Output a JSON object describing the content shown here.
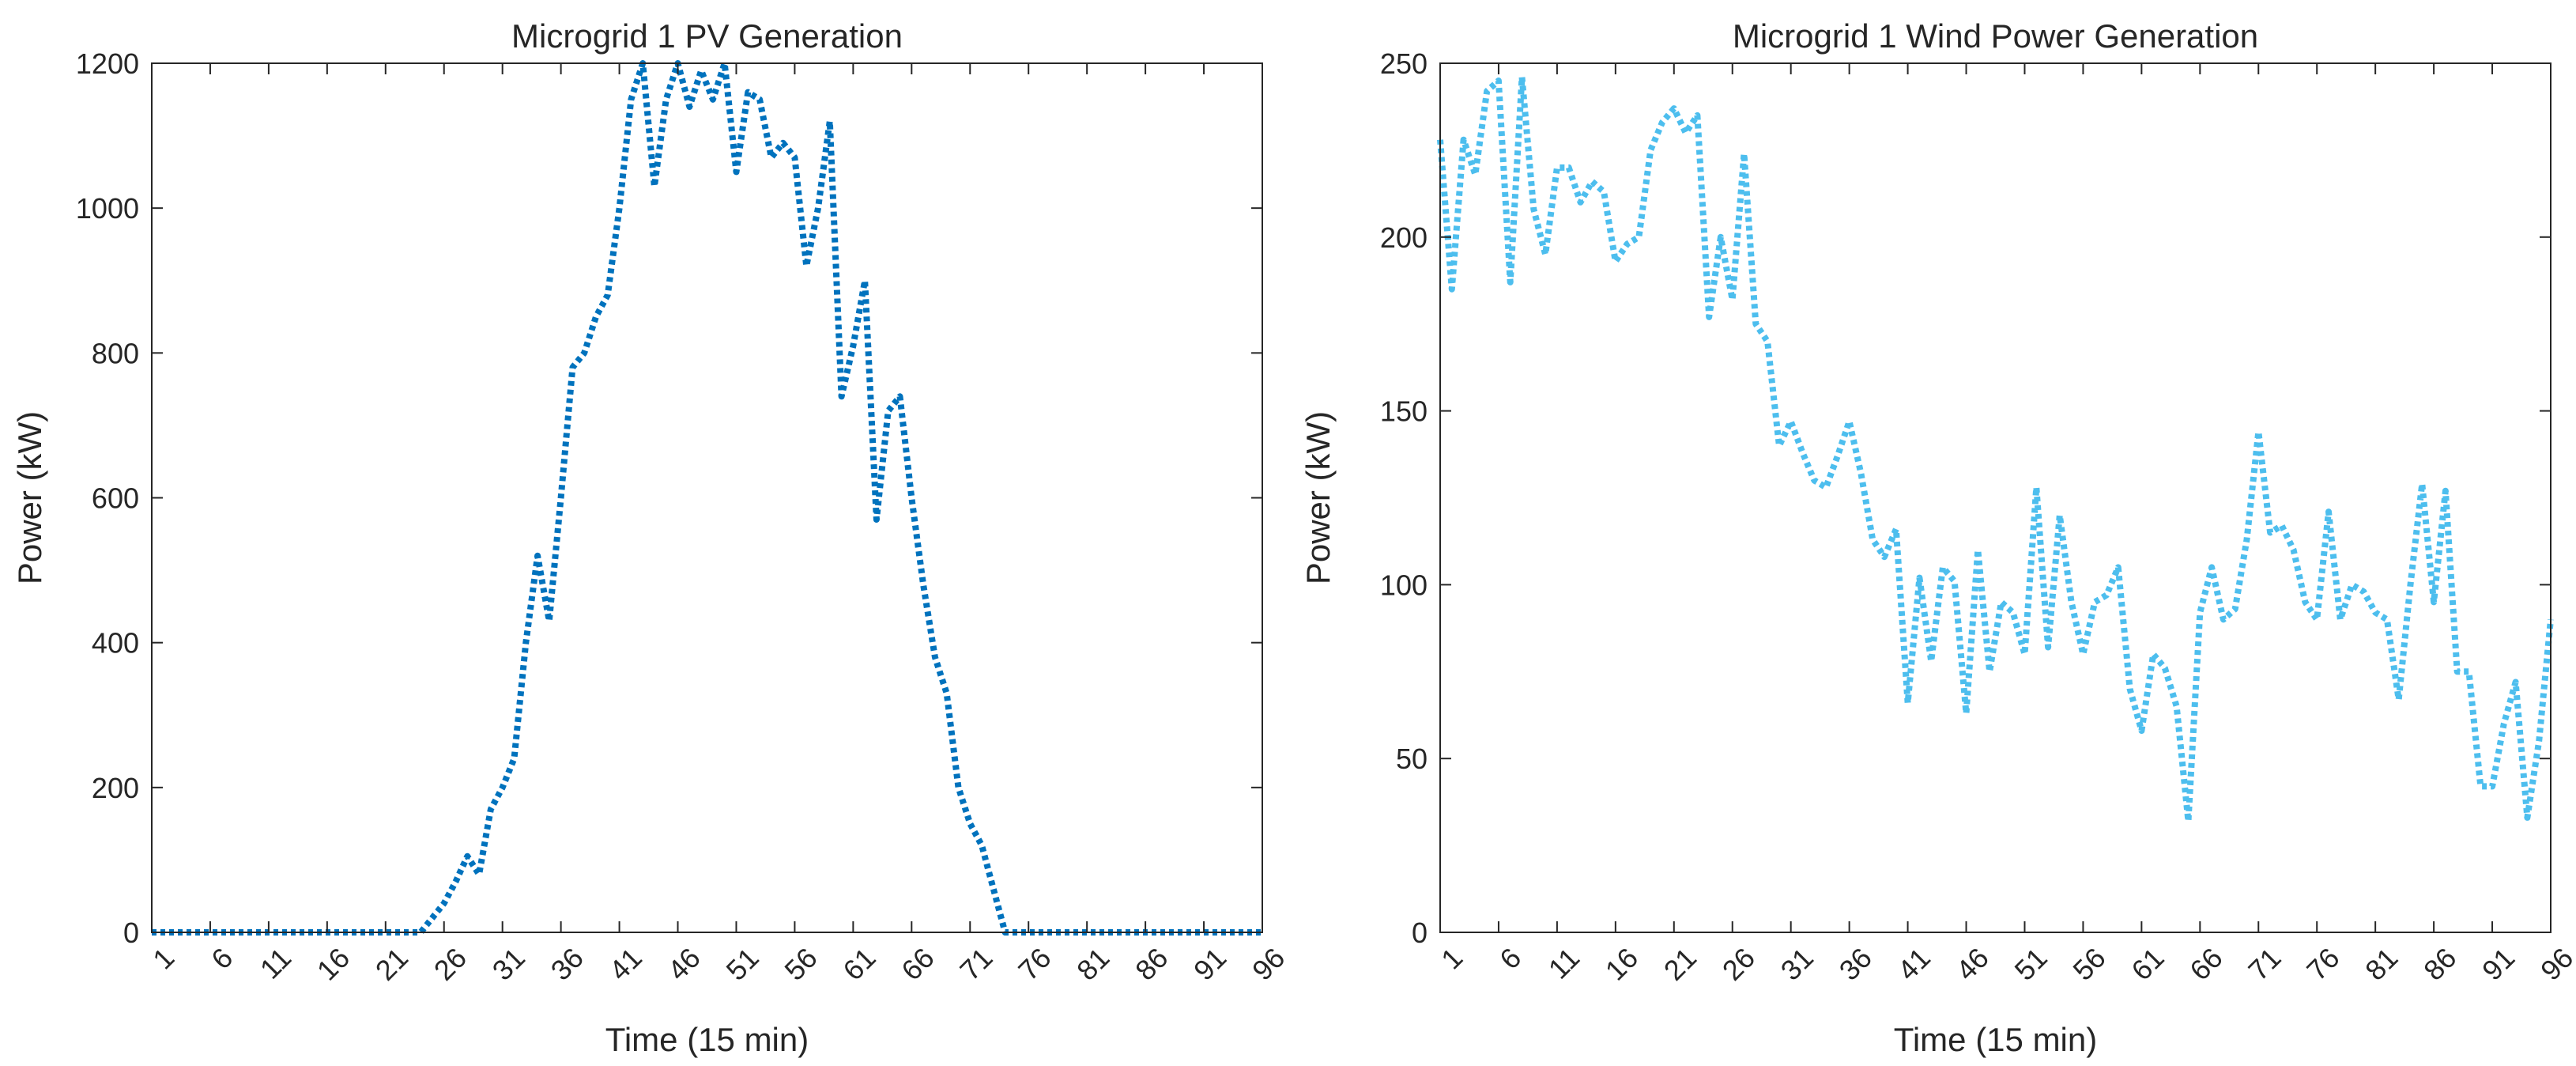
{
  "chart_data": [
    {
      "type": "line",
      "title": "Microgrid 1 PV Generation",
      "xlabel": "Time (15 min)",
      "ylabel": "Power (kW)",
      "xlim": [
        1,
        96
      ],
      "ylim": [
        0,
        1200
      ],
      "xticks": [
        1,
        6,
        11,
        16,
        21,
        26,
        31,
        36,
        41,
        46,
        51,
        56,
        61,
        66,
        71,
        76,
        81,
        86,
        91,
        96
      ],
      "yticks": [
        0,
        200,
        400,
        600,
        800,
        1000,
        1200
      ],
      "grid": false,
      "line_style": "dotted",
      "series": [
        {
          "name": "PV",
          "color": "#0072BD",
          "x": [
            1,
            2,
            3,
            4,
            5,
            6,
            7,
            8,
            9,
            10,
            11,
            12,
            13,
            14,
            15,
            16,
            17,
            18,
            19,
            20,
            21,
            22,
            23,
            24,
            25,
            26,
            27,
            28,
            29,
            30,
            31,
            32,
            33,
            34,
            35,
            36,
            37,
            38,
            39,
            40,
            41,
            42,
            43,
            44,
            45,
            46,
            47,
            48,
            49,
            50,
            51,
            52,
            53,
            54,
            55,
            56,
            57,
            58,
            59,
            60,
            61,
            62,
            63,
            64,
            65,
            66,
            67,
            68,
            69,
            70,
            71,
            72,
            73,
            74,
            75,
            76,
            77,
            78,
            79,
            80,
            81,
            82,
            83,
            84,
            85,
            86,
            87,
            88,
            89,
            90,
            91,
            92,
            93,
            94,
            95,
            96
          ],
          "values": [
            0,
            0,
            0,
            0,
            0,
            0,
            0,
            0,
            0,
            0,
            0,
            0,
            0,
            0,
            0,
            0,
            0,
            0,
            0,
            0,
            0,
            0,
            0,
            0,
            20,
            40,
            70,
            105,
            80,
            170,
            200,
            240,
            400,
            520,
            430,
            600,
            780,
            800,
            850,
            880,
            1000,
            1150,
            1200,
            1030,
            1150,
            1200,
            1140,
            1190,
            1150,
            1200,
            1050,
            1160,
            1150,
            1070,
            1090,
            1070,
            920,
            1000,
            1120,
            740,
            810,
            900,
            570,
            720,
            740,
            600,
            480,
            380,
            330,
            200,
            150,
            120,
            60,
            0,
            0,
            0,
            0,
            0,
            0,
            0,
            0,
            0,
            0,
            0,
            0,
            0,
            0,
            0,
            0,
            0,
            0,
            0,
            0,
            0,
            0,
            0
          ]
        }
      ]
    },
    {
      "type": "line",
      "title": "Microgrid 1 Wind Power Generation",
      "xlabel": "Time (15 min)",
      "ylabel": "Power (kW)",
      "xlim": [
        1,
        96
      ],
      "ylim": [
        0,
        250
      ],
      "xticks": [
        1,
        6,
        11,
        16,
        21,
        26,
        31,
        36,
        41,
        46,
        51,
        56,
        61,
        66,
        71,
        76,
        81,
        86,
        91,
        96
      ],
      "yticks": [
        0,
        50,
        100,
        150,
        200,
        250
      ],
      "grid": false,
      "line_style": "dotted",
      "series": [
        {
          "name": "Wind",
          "color": "#4DBEEE",
          "x": [
            1,
            2,
            3,
            4,
            5,
            6,
            7,
            8,
            9,
            10,
            11,
            12,
            13,
            14,
            15,
            16,
            17,
            18,
            19,
            20,
            21,
            22,
            23,
            24,
            25,
            26,
            27,
            28,
            29,
            30,
            31,
            32,
            33,
            34,
            35,
            36,
            37,
            38,
            39,
            40,
            41,
            42,
            43,
            44,
            45,
            46,
            47,
            48,
            49,
            50,
            51,
            52,
            53,
            54,
            55,
            56,
            57,
            58,
            59,
            60,
            61,
            62,
            63,
            64,
            65,
            66,
            67,
            68,
            69,
            70,
            71,
            72,
            73,
            74,
            75,
            76,
            77,
            78,
            79,
            80,
            81,
            82,
            83,
            84,
            85,
            86,
            87,
            88,
            89,
            90,
            91,
            92,
            93,
            94,
            95,
            96
          ],
          "values": [
            228,
            185,
            228,
            218,
            242,
            245,
            187,
            246,
            208,
            195,
            220,
            220,
            210,
            216,
            213,
            193,
            198,
            200,
            225,
            233,
            237,
            230,
            235,
            177,
            200,
            182,
            224,
            175,
            170,
            140,
            147,
            138,
            130,
            128,
            137,
            147,
            132,
            113,
            108,
            116,
            66,
            102,
            78,
            105,
            101,
            63,
            110,
            75,
            95,
            92,
            80,
            128,
            82,
            120,
            95,
            80,
            95,
            97,
            105,
            70,
            58,
            80,
            76,
            65,
            32,
            92,
            105,
            90,
            93,
            113,
            144,
            115,
            117,
            110,
            95,
            90,
            121,
            90,
            100,
            98,
            92,
            90,
            67,
            100,
            129,
            95,
            127,
            75,
            75,
            42,
            42,
            60,
            72,
            33,
            55,
            90
          ]
        }
      ]
    }
  ]
}
